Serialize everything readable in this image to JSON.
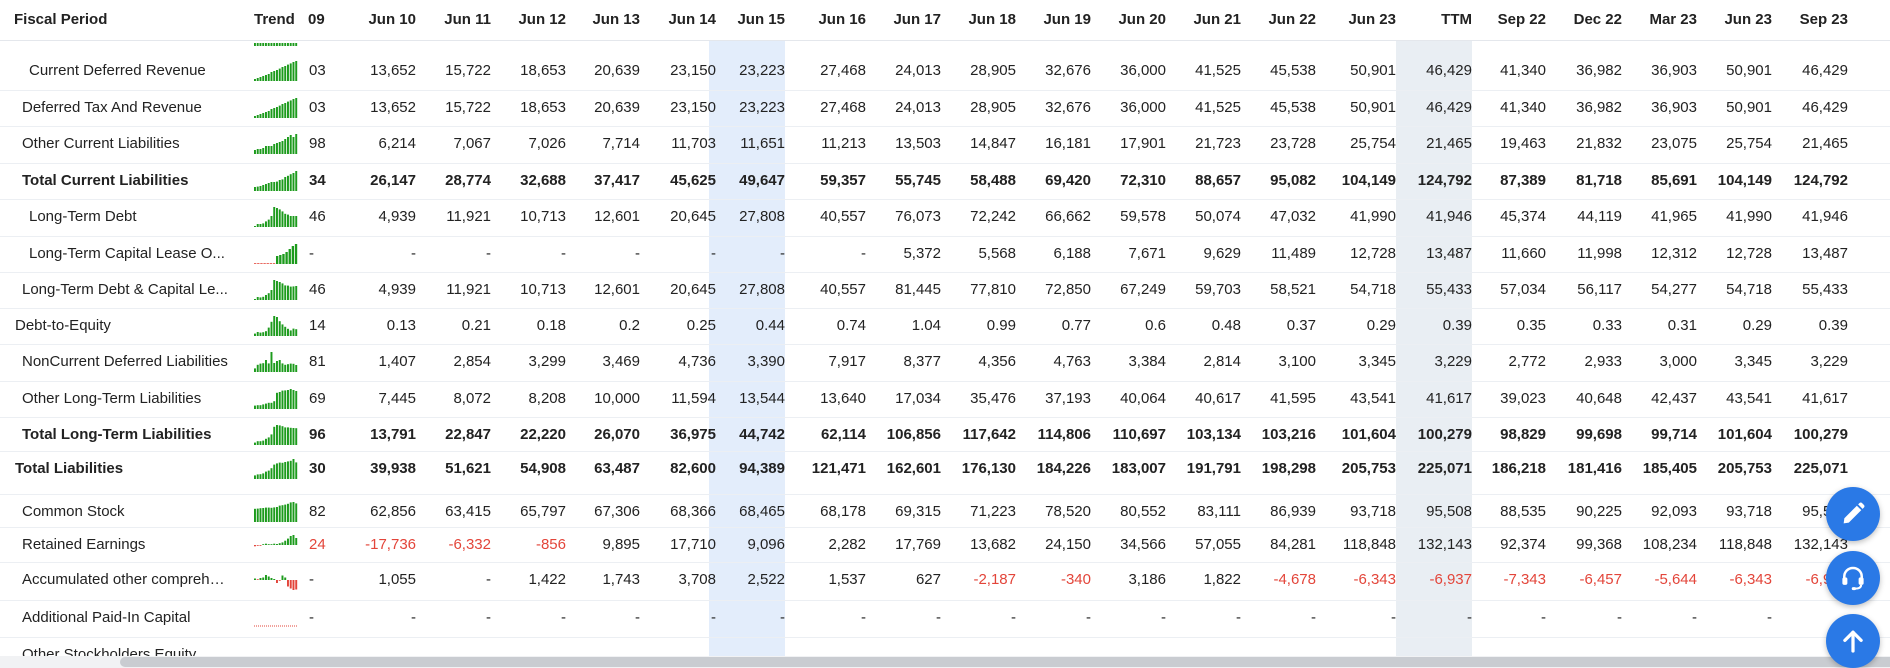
{
  "columns": [
    "Fiscal Period",
    "Trend",
    "09",
    "Jun 10",
    "Jun 11",
    "Jun 12",
    "Jun 13",
    "Jun 14",
    "Jun 15",
    "Jun 16",
    "Jun 17",
    "Jun 18",
    "Jun 19",
    "Jun 20",
    "Jun 21",
    "Jun 22",
    "Jun 23",
    "TTM",
    "Sep 22",
    "Dec 22",
    "Mar 23",
    "Jun 23",
    "Sep 23"
  ],
  "colors": {
    "trend_up": "#1d9b1d",
    "trend_down": "#e3453a",
    "negative": "#e3453a",
    "highlight": "#e3edfb",
    "ttm": "#e9eef3",
    "fab": "#2a79e6"
  },
  "rows": [
    {
      "label": "Current Deferred Revenue",
      "indent": 2,
      "bold": false,
      "trend": [
        0.1,
        0.15,
        0.2,
        0.25,
        0.3,
        0.35,
        0.45,
        0.5,
        0.55,
        0.62,
        0.7,
        0.75,
        0.82,
        0.88,
        0.95,
        1.0
      ],
      "code": "03",
      "values": [
        "13,652",
        "15,722",
        "18,653",
        "20,639",
        "23,150",
        "23,223",
        "27,468",
        "24,013",
        "28,905",
        "32,676",
        "36,000",
        "41,525",
        "45,538",
        "50,901",
        "46,429",
        "41,340",
        "36,982",
        "36,903",
        "50,901",
        "46,429"
      ]
    },
    {
      "label": "Deferred Tax And Revenue",
      "indent": 1,
      "bold": false,
      "trend": [
        0.1,
        0.15,
        0.2,
        0.25,
        0.3,
        0.35,
        0.45,
        0.5,
        0.55,
        0.62,
        0.7,
        0.75,
        0.82,
        0.88,
        0.95,
        1.0
      ],
      "code": "03",
      "values": [
        "13,652",
        "15,722",
        "18,653",
        "20,639",
        "23,150",
        "23,223",
        "27,468",
        "24,013",
        "28,905",
        "32,676",
        "36,000",
        "41,525",
        "45,538",
        "50,901",
        "46,429",
        "41,340",
        "36,982",
        "36,903",
        "50,901",
        "46,429"
      ]
    },
    {
      "label": "Other Current Liabilities",
      "indent": 1,
      "bold": false,
      "trend": [
        0.2,
        0.25,
        0.25,
        0.3,
        0.4,
        0.4,
        0.4,
        0.5,
        0.55,
        0.6,
        0.65,
        0.75,
        0.85,
        0.95,
        0.85,
        1.0
      ],
      "code": "98",
      "values": [
        "6,214",
        "7,067",
        "7,026",
        "7,714",
        "11,703",
        "11,651",
        "11,213",
        "13,503",
        "14,847",
        "16,181",
        "17,901",
        "21,723",
        "23,728",
        "25,754",
        "21,465",
        "19,463",
        "21,832",
        "23,075",
        "25,754",
        "21,465"
      ]
    },
    {
      "label": "Total Current Liabilities",
      "indent": 1,
      "bold": true,
      "trend": [
        0.2,
        0.22,
        0.25,
        0.3,
        0.35,
        0.4,
        0.45,
        0.45,
        0.47,
        0.55,
        0.58,
        0.7,
        0.76,
        0.84,
        0.9,
        1.0
      ],
      "code": "34",
      "values": [
        "26,147",
        "28,774",
        "32,688",
        "37,417",
        "45,625",
        "49,647",
        "59,357",
        "55,745",
        "58,488",
        "69,420",
        "72,310",
        "88,657",
        "95,082",
        "104,149",
        "124,792",
        "87,389",
        "81,718",
        "85,691",
        "104,149",
        "124,792"
      ]
    },
    {
      "label": "Long-Term Debt",
      "indent": 2,
      "bold": false,
      "trend": [
        0.05,
        0.15,
        0.15,
        0.18,
        0.28,
        0.37,
        0.55,
        1.0,
        0.95,
        0.88,
        0.78,
        0.66,
        0.62,
        0.55,
        0.55,
        0.55
      ],
      "code": "46",
      "values": [
        "4,939",
        "11,921",
        "10,713",
        "12,601",
        "20,645",
        "27,808",
        "40,557",
        "76,073",
        "72,242",
        "66,662",
        "59,578",
        "50,074",
        "47,032",
        "41,990",
        "41,946",
        "45,374",
        "44,119",
        "41,965",
        "41,990",
        "41,946"
      ]
    },
    {
      "label": "Long-Term Capital Lease O...",
      "indent": 2,
      "bold": false,
      "trend": [
        0,
        0,
        0,
        0,
        0,
        0,
        0,
        0.4,
        0.45,
        0.5,
        0.6,
        0.75,
        0.9,
        1.0
      ],
      "trendcolor": "mixed",
      "code": "-",
      "values": [
        "-",
        "-",
        "-",
        "-",
        "-",
        "-",
        "-",
        "5,372",
        "5,568",
        "6,188",
        "7,671",
        "9,629",
        "11,489",
        "12,728",
        "13,487",
        "11,660",
        "11,998",
        "12,312",
        "12,728",
        "13,487"
      ]
    },
    {
      "label": "Long-Term Debt & Capital Le...",
      "indent": 1,
      "bold": false,
      "trend": [
        0.05,
        0.15,
        0.13,
        0.16,
        0.25,
        0.34,
        0.5,
        1.0,
        0.95,
        0.9,
        0.83,
        0.73,
        0.72,
        0.67,
        0.68,
        0.7
      ],
      "code": "46",
      "values": [
        "4,939",
        "11,921",
        "10,713",
        "12,601",
        "20,645",
        "27,808",
        "40,557",
        "81,445",
        "77,810",
        "72,850",
        "67,249",
        "59,703",
        "58,521",
        "54,718",
        "55,433",
        "57,034",
        "56,117",
        "54,277",
        "54,718",
        "55,433"
      ]
    },
    {
      "label": "Debt-to-Equity",
      "indent": 0,
      "bold": false,
      "trend": [
        0.12,
        0.2,
        0.17,
        0.19,
        0.24,
        0.42,
        0.71,
        1.0,
        0.95,
        0.74,
        0.58,
        0.46,
        0.36,
        0.28,
        0.37,
        0.34
      ],
      "code": "14",
      "values": [
        "0.13",
        "0.21",
        "0.18",
        "0.2",
        "0.25",
        "0.44",
        "0.74",
        "1.04",
        "0.99",
        "0.77",
        "0.6",
        "0.48",
        "0.37",
        "0.29",
        "0.39",
        "0.35",
        "0.33",
        "0.31",
        "0.29",
        "0.39"
      ]
    },
    {
      "label": "NonCurrent Deferred Liabilities",
      "indent": 1,
      "bold": false,
      "trend": [
        0.18,
        0.36,
        0.42,
        0.44,
        0.6,
        0.43,
        1.0,
        0.45,
        0.55,
        0.6,
        0.43,
        0.36,
        0.39,
        0.42,
        0.41,
        0.35
      ],
      "code": "81",
      "values": [
        "1,407",
        "2,854",
        "3,299",
        "3,469",
        "4,736",
        "3,390",
        "7,917",
        "8,377",
        "4,356",
        "4,763",
        "3,384",
        "2,814",
        "3,100",
        "3,345",
        "3,229",
        "2,772",
        "2,933",
        "3,000",
        "3,345",
        "3,229"
      ]
    },
    {
      "label": "Other Long-Term Liabilities",
      "indent": 1,
      "bold": false,
      "trend": [
        0.17,
        0.19,
        0.19,
        0.23,
        0.27,
        0.31,
        0.31,
        0.39,
        0.81,
        0.85,
        0.92,
        0.93,
        0.95,
        1.0,
        0.95,
        0.9
      ],
      "code": "69",
      "values": [
        "7,445",
        "8,072",
        "8,208",
        "10,000",
        "11,594",
        "13,544",
        "13,640",
        "17,034",
        "35,476",
        "37,193",
        "40,064",
        "40,617",
        "41,595",
        "43,541",
        "41,617",
        "39,023",
        "40,648",
        "42,437",
        "43,541",
        "41,617"
      ]
    },
    {
      "label": "Total Long-Term Liabilities",
      "indent": 1,
      "bold": true,
      "trend": [
        0.12,
        0.19,
        0.19,
        0.22,
        0.31,
        0.38,
        0.53,
        0.91,
        1.0,
        0.98,
        0.94,
        0.88,
        0.88,
        0.86,
        0.85,
        0.84
      ],
      "code": "96",
      "values": [
        "13,791",
        "22,847",
        "22,220",
        "26,070",
        "36,975",
        "44,742",
        "62,114",
        "106,856",
        "117,642",
        "114,806",
        "110,697",
        "103,134",
        "103,216",
        "101,604",
        "100,279",
        "98,829",
        "99,698",
        "99,714",
        "101,604",
        "100,279"
      ]
    },
    {
      "label": "Total Liabilities",
      "indent": 0,
      "bold": true,
      "trend": [
        0.18,
        0.23,
        0.24,
        0.28,
        0.37,
        0.42,
        0.54,
        0.72,
        0.78,
        0.82,
        0.81,
        0.85,
        0.88,
        0.91,
        1.0,
        0.83
      ],
      "code": "30",
      "values": [
        "39,938",
        "51,621",
        "54,908",
        "63,487",
        "82,600",
        "94,389",
        "121,471",
        "162,601",
        "176,130",
        "184,226",
        "183,007",
        "191,791",
        "198,298",
        "205,753",
        "225,071",
        "186,218",
        "181,416",
        "185,405",
        "205,753",
        "225,071"
      ]
    },
    {
      "label": "Common Stock",
      "indent": 1,
      "bold": false,
      "trend": [
        0.66,
        0.67,
        0.69,
        0.7,
        0.72,
        0.72,
        0.71,
        0.73,
        0.75,
        0.82,
        0.84,
        0.87,
        0.91,
        0.98,
        1.0,
        0.93
      ],
      "code": "82",
      "values": [
        "62,856",
        "63,415",
        "65,797",
        "67,306",
        "68,366",
        "68,465",
        "68,178",
        "69,315",
        "71,223",
        "78,520",
        "80,552",
        "83,111",
        "86,939",
        "93,718",
        "95,508",
        "88,535",
        "90,225",
        "92,093",
        "93,718",
        "95,508"
      ]
    },
    {
      "label": "Retained Earnings",
      "indent": 1,
      "bold": false,
      "trend": [
        -0.13,
        -0.05,
        -0.01,
        0.07,
        0.13,
        0.07,
        0.02,
        0.13,
        0.1,
        0.18,
        0.26,
        0.43,
        0.64,
        0.9,
        1.0,
        0.7
      ],
      "trendcolor": "mixed",
      "code": "24",
      "codeneg": true,
      "values": [
        "-17,736",
        "-6,332",
        "-856",
        "9,895",
        "17,710",
        "9,096",
        "2,282",
        "17,769",
        "13,682",
        "24,150",
        "34,566",
        "57,055",
        "84,281",
        "118,848",
        "132,143",
        "92,374",
        "99,368",
        "108,234",
        "118,848",
        "132,143"
      ]
    },
    {
      "label": "Accumulated other comprehe...",
      "indent": 1,
      "bold": false,
      "trend": [
        0.15,
        0,
        0.2,
        0.25,
        0.5,
        0.35,
        0.2,
        0.1,
        -0.3,
        -0.05,
        0.45,
        0.25,
        -0.65,
        -0.85,
        -1.0,
        -0.95
      ],
      "trendcolor": "mixed",
      "code": "-",
      "values": [
        "1,055",
        "-",
        "1,422",
        "1,743",
        "3,708",
        "2,522",
        "1,537",
        "627",
        "-2,187",
        "-340",
        "3,186",
        "1,822",
        "-4,678",
        "-6,343",
        "-6,937",
        "-7,343",
        "-6,457",
        "-5,644",
        "-6,343",
        "-6,937"
      ]
    },
    {
      "label": "Additional Paid-In Capital",
      "indent": 1,
      "bold": false,
      "trend": [],
      "trendcolor": "flat",
      "code": "-",
      "values": [
        "-",
        "-",
        "-",
        "-",
        "-",
        "-",
        "-",
        "-",
        "-",
        "-",
        "-",
        "-",
        "-",
        "-",
        "-",
        "-",
        "-",
        "-",
        "-",
        "-"
      ]
    },
    {
      "label": "Other Stockholders Equity",
      "indent": 1,
      "bold": false,
      "trend": [],
      "trendcolor": "none",
      "code": "",
      "values": [
        "",
        "",
        "",
        "",
        "",
        "",
        "",
        "",
        "",
        "",
        "",
        "",
        "",
        "",
        "",
        "",
        "",
        "",
        "",
        ""
      ]
    }
  ],
  "fabs": [
    "edit-icon",
    "support-icon",
    "arrow-up-icon"
  ]
}
